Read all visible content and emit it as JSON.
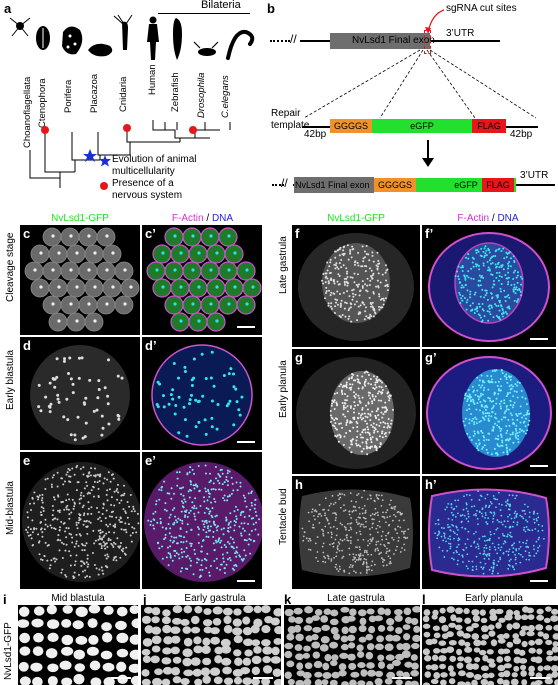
{
  "panels": {
    "a": "a",
    "b": "b",
    "c": "c",
    "c2": "c’",
    "d": "d",
    "d2": "d’",
    "e": "e",
    "e2": "e’",
    "f": "f",
    "f2": "f’",
    "g": "g",
    "g2": "g’",
    "h": "h",
    "h2": "h’",
    "i": "i",
    "j": "j",
    "k": "k",
    "l": "l"
  },
  "phylogeny": {
    "clade_label": "Bilateria",
    "taxa": [
      "Choanoflagellata",
      "Ctenophora",
      "Porifera",
      "Placazoa",
      "Cnidaria",
      "Human",
      "Zebrafish",
      "Drosophila",
      "C.elegans"
    ],
    "legend": {
      "star_text": "Evolution of animal multicellularity",
      "dot_text_line1": "Presence of a",
      "dot_text_line2": "nervous system"
    },
    "colors": {
      "star": "#1b2fd6",
      "dot": "#e8161b"
    }
  },
  "construct": {
    "sgrna_label": "sgRNA cut sites",
    "final_exon": "NvLsd1 Final exon",
    "utr": "3’UTR",
    "repair_template_line1": "Repair",
    "repair_template_line2": "template",
    "arm_left": "42bp",
    "arm_right": "42bp",
    "linker": "GGGGS",
    "egfp": "eGFP",
    "flag": "FLAG",
    "colors": {
      "exon": "#6e6e6e",
      "linker": "#f0922a",
      "egfp": "#22e02e",
      "flag": "#e8161b",
      "cut": "#e8161b"
    }
  },
  "imaging": {
    "col_gfp": "NvLsd1-GFP",
    "col_factin": "F-Actin",
    "col_sep": " / ",
    "col_dna": "DNA",
    "stages_left": [
      "Cleavage stage",
      "Early blastula",
      "Mid-blastula"
    ],
    "stages_right": [
      "Late gastrula",
      "Early planula",
      "Tentacle bud"
    ],
    "bottom_titles": [
      "Mid blastula",
      "Early gastrula",
      "Late gastrula",
      "Early planula"
    ],
    "bottom_row_label": "NvLsd1-GFP",
    "colors": {
      "gfp": "#19e619",
      "factin": "#cc33cc",
      "dna": "#1f1fe6"
    }
  }
}
